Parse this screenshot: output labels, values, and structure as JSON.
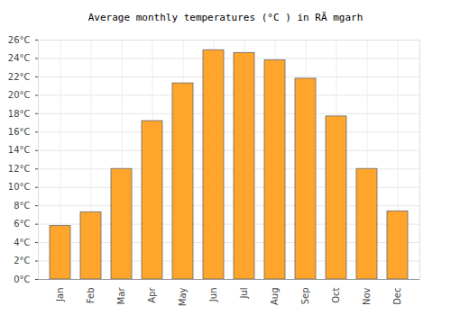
{
  "chart_data": {
    "type": "bar",
    "title": "Average monthly temperatures (°C ) in RÄ mgarh",
    "categories": [
      "Jan",
      "Feb",
      "Mar",
      "Apr",
      "May",
      "Jun",
      "Jul",
      "Aug",
      "Sep",
      "Oct",
      "Nov",
      "Dec"
    ],
    "values": [
      5.8,
      7.3,
      12.0,
      17.2,
      21.3,
      24.9,
      24.6,
      23.8,
      21.8,
      17.7,
      12.0,
      7.4
    ],
    "color": "#ffa52b",
    "ylim": [
      0,
      26
    ],
    "yticks": [
      {
        "value": 0,
        "label": "0°C"
      },
      {
        "value": 2,
        "label": "2°C"
      },
      {
        "value": 4,
        "label": "4°C"
      },
      {
        "value": 6,
        "label": "6°C"
      },
      {
        "value": 8,
        "label": "8°C"
      },
      {
        "value": 10,
        "label": "10°C"
      },
      {
        "value": 12,
        "label": "12°C"
      },
      {
        "value": 14,
        "label": "14°C"
      },
      {
        "value": 16,
        "label": "16°C"
      },
      {
        "value": 18,
        "label": "18°C"
      },
      {
        "value": 20,
        "label": "20°C"
      },
      {
        "value": 22,
        "label": "22°C"
      },
      {
        "value": 24,
        "label": "24°C"
      },
      {
        "value": 26,
        "label": "26°C"
      }
    ],
    "grid": true
  }
}
